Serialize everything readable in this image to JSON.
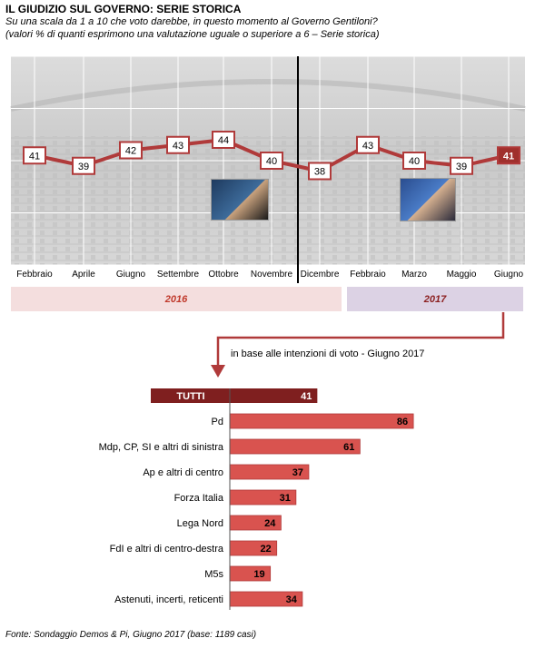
{
  "header": {
    "title": "IL GIUDIZIO  SUL GOVERNO: SERIE STORICA",
    "subtitle_line1": "Su una scala da 1 a 10 che voto darebbe, in questo momento al Governo Gentiloni?",
    "subtitle_line2": "(valori % di quanti esprimono una valutazione uguale o superiore a 6 – Serie storica)"
  },
  "years": {
    "y2016": "2016",
    "y2017": "2017"
  },
  "intent_label": "in base alle intenzioni di voto - Giugno 2017",
  "source": "Fonte: Sondaggio Demos & Pi, Giugno 2017 (base: 1189 casi)",
  "colors": {
    "line": "#b03a3a",
    "bar": "#d9534f",
    "total_bar": "#7f1f1f",
    "highlight": "#a0302d"
  },
  "chart_data": [
    {
      "type": "line",
      "categories": [
        "Febbraio",
        "Aprile",
        "Giugno",
        "Settembre",
        "Ottobre",
        "Novembre",
        "Dicembre",
        "Febbraio",
        "Marzo",
        "Maggio",
        "Giugno"
      ],
      "series": [
        {
          "values": [
            41,
            39,
            42,
            43,
            44,
            40,
            38,
            43,
            40,
            39,
            41
          ]
        }
      ],
      "period_split_after_index": 5,
      "highlight_index": 10,
      "ylim": [
        20,
        60
      ]
    },
    {
      "type": "bar",
      "orientation": "horizontal",
      "categories": [
        "TUTTI",
        "Pd",
        "Mdp, CP, SI e altri di sinistra",
        "Ap e altri di centro",
        "Forza Italia",
        "Lega Nord",
        "FdI e altri di centro-destra",
        "M5s",
        "Astenuti, incerti, reticenti"
      ],
      "values": [
        41,
        86,
        61,
        37,
        31,
        24,
        22,
        19,
        34
      ],
      "highlight_index": 0,
      "xlim": [
        0,
        100
      ]
    }
  ]
}
